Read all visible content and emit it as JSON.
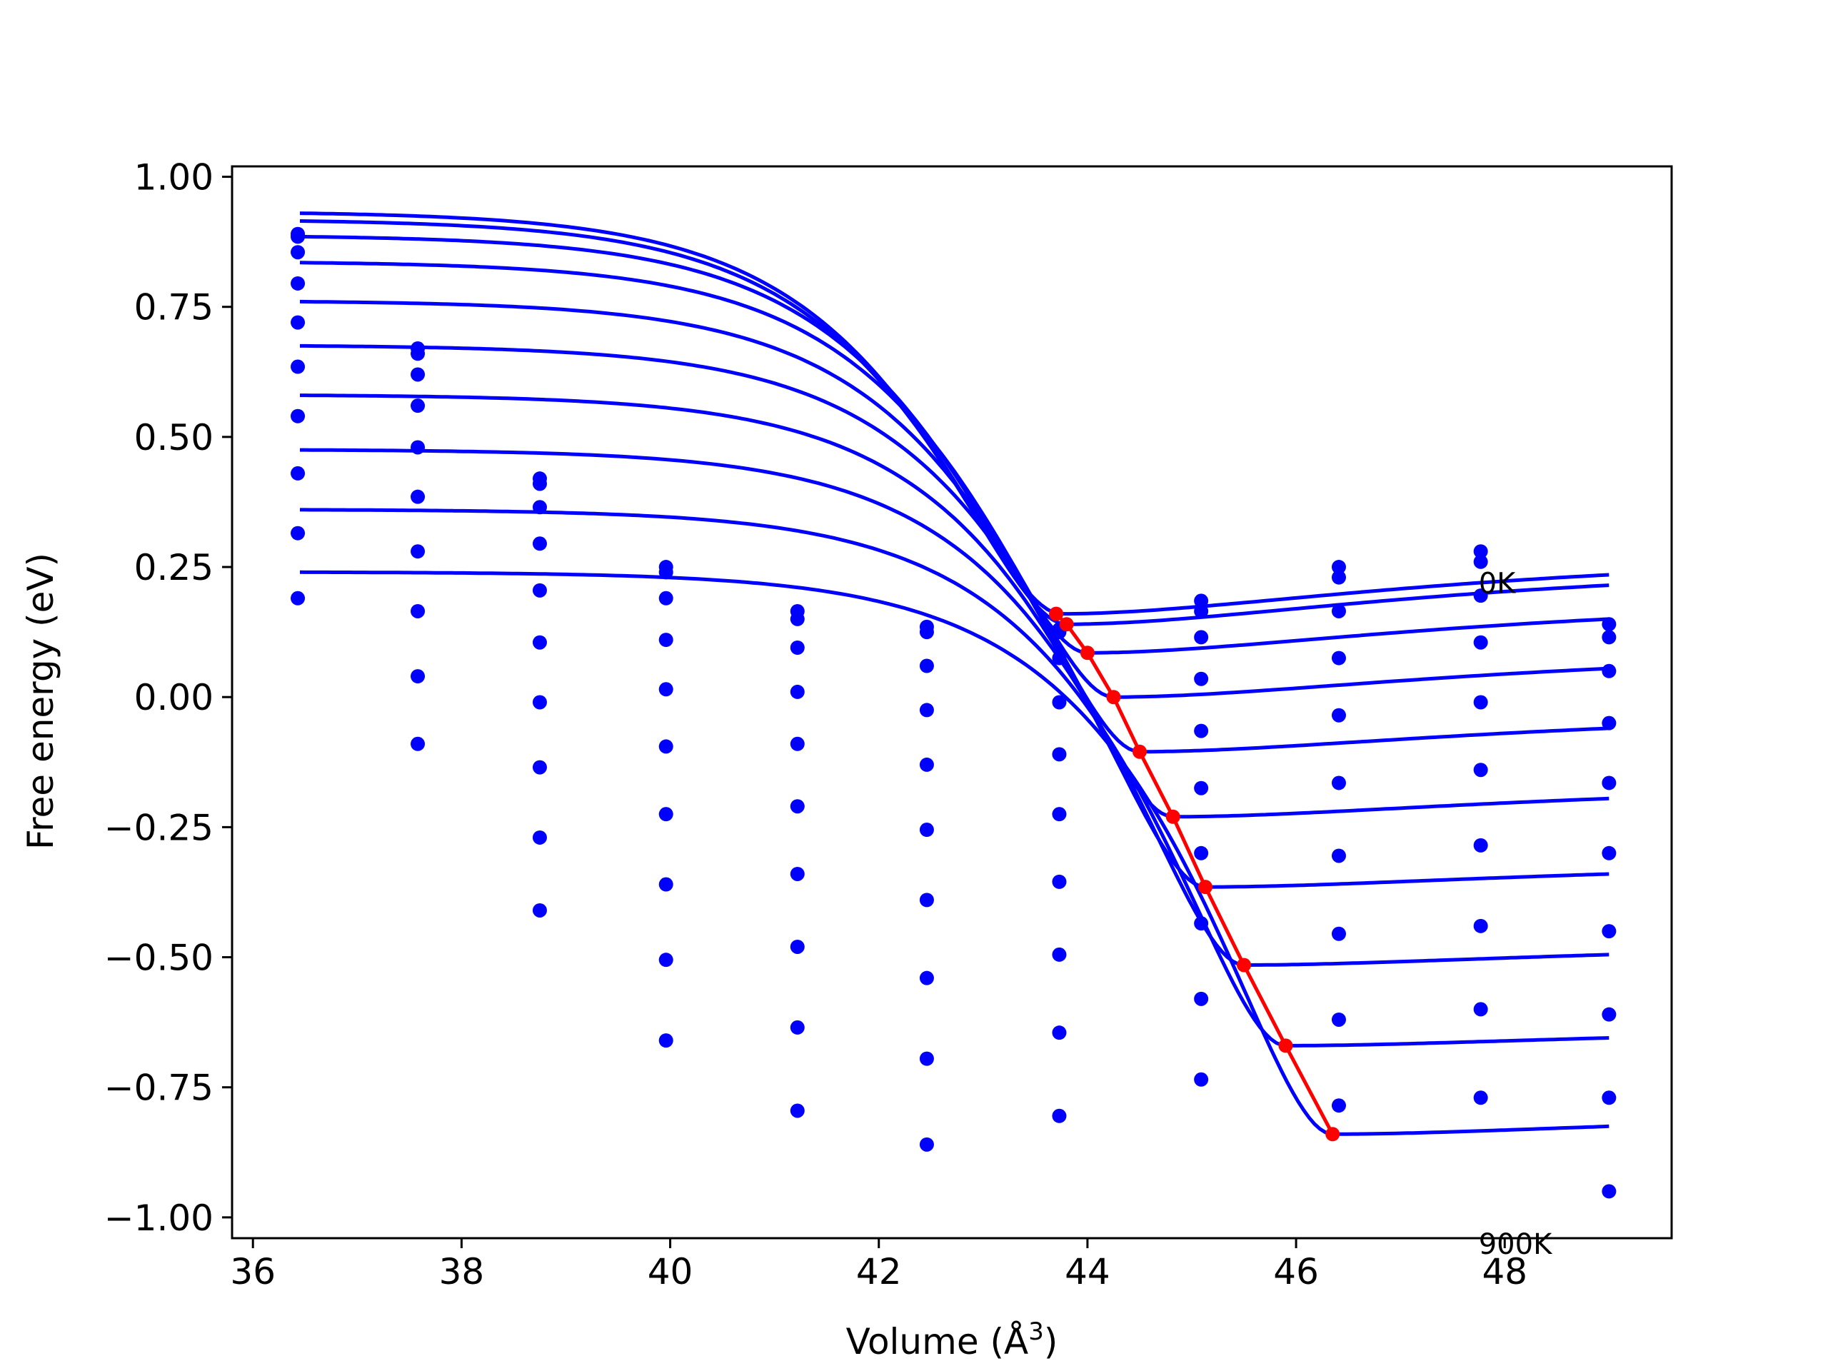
{
  "chart_data": {
    "type": "scatter",
    "title": "",
    "xlabel": "Volume (Å",
    "xlabel_sup": "3",
    "xlabel_close": ")",
    "ylabel": "Free energy (eV)",
    "xlim": [
      35.8,
      49.6
    ],
    "ylim": [
      -1.04,
      1.02
    ],
    "xticks": [
      36,
      38,
      40,
      42,
      44,
      46,
      48
    ],
    "xtick_labels": [
      "36",
      "38",
      "40",
      "42",
      "44",
      "46",
      "48"
    ],
    "yticks": [
      1.0,
      0.75,
      0.5,
      0.25,
      0.0,
      -0.25,
      -0.5,
      -0.75,
      -1.0
    ],
    "ytick_labels": [
      "1.00",
      "0.75",
      "0.50",
      "0.25",
      "0.00",
      "−0.25",
      "−0.50",
      "−0.75",
      "−1.00"
    ],
    "grid": false,
    "colors": {
      "points": "#0000ff",
      "fits": "#0000ff",
      "minima": "#ff0000"
    },
    "annotations": [
      {
        "text": "0K",
        "x": 47.75,
        "y": 0.2
      },
      {
        "text": "900K",
        "x": 47.75,
        "y": -1.07
      }
    ],
    "volumes": [
      36.43,
      37.58,
      38.75,
      39.96,
      41.22,
      42.46,
      43.73,
      45.09,
      46.41,
      47.77,
      49.0
    ],
    "series": [
      {
        "values": [
          0.89,
          0.67,
          0.42,
          0.25,
          0.165,
          0.135,
          0.13,
          0.185,
          0.25,
          0.28,
          0.14
        ]
      },
      {
        "values": [
          0.885,
          0.66,
          0.41,
          0.24,
          0.15,
          0.125,
          0.125,
          0.165,
          0.23,
          0.26,
          0.115
        ]
      },
      {
        "values": [
          0.855,
          0.62,
          0.365,
          0.19,
          0.095,
          0.06,
          0.075,
          0.115,
          0.165,
          0.195,
          0.05
        ]
      },
      {
        "values": [
          0.795,
          0.56,
          0.295,
          0.11,
          0.01,
          -0.025,
          -0.01,
          0.035,
          0.075,
          0.105,
          -0.05
        ]
      },
      {
        "values": [
          0.72,
          0.48,
          0.205,
          0.015,
          -0.09,
          -0.13,
          -0.11,
          -0.065,
          -0.035,
          -0.01,
          -0.165
        ]
      },
      {
        "values": [
          0.635,
          0.385,
          0.105,
          -0.095,
          -0.21,
          -0.255,
          -0.225,
          -0.175,
          -0.165,
          -0.14,
          -0.3
        ]
      },
      {
        "values": [
          0.54,
          0.28,
          -0.01,
          -0.225,
          -0.34,
          -0.39,
          -0.355,
          -0.3,
          -0.305,
          -0.285,
          -0.45
        ]
      },
      {
        "values": [
          0.43,
          0.165,
          -0.135,
          -0.36,
          -0.48,
          -0.54,
          -0.495,
          -0.435,
          -0.455,
          -0.44,
          -0.61
        ]
      },
      {
        "values": [
          0.315,
          0.04,
          -0.27,
          -0.505,
          -0.635,
          -0.695,
          -0.645,
          -0.58,
          -0.62,
          -0.6,
          -0.77
        ]
      },
      {
        "values": [
          0.19,
          -0.09,
          -0.41,
          -0.66,
          -0.795,
          -0.86,
          -0.805,
          -0.735,
          -0.785,
          -0.77,
          -0.95
        ]
      }
    ],
    "fit_curves": [
      {
        "v0": 43.75,
        "e0": 0.16,
        "right": 0.235
      },
      {
        "v0": 43.8,
        "e0": 0.14,
        "right": 0.215
      },
      {
        "v0": 44.0,
        "e0": 0.085,
        "right": 0.15
      },
      {
        "v0": 44.25,
        "e0": 0.0,
        "right": 0.055
      },
      {
        "v0": 44.5,
        "e0": -0.105,
        "right": -0.06
      },
      {
        "v0": 44.82,
        "e0": -0.23,
        "right": -0.195
      },
      {
        "v0": 45.13,
        "e0": -0.365,
        "right": -0.34
      },
      {
        "v0": 45.5,
        "e0": -0.515,
        "right": -0.495
      },
      {
        "v0": 45.9,
        "e0": -0.67,
        "right": -0.655
      },
      {
        "v0": 46.35,
        "e0": -0.84,
        "right": -0.825
      }
    ],
    "fit_left_values": [
      0.93,
      0.915,
      0.885,
      0.835,
      0.76,
      0.675,
      0.58,
      0.475,
      0.36,
      0.24
    ],
    "fit_x_range": [
      36.45,
      49.0
    ],
    "minima": {
      "x": [
        43.7,
        43.8,
        44.0,
        44.25,
        44.5,
        44.82,
        45.13,
        45.5,
        45.9,
        46.35
      ],
      "y": [
        0.16,
        0.14,
        0.085,
        0.0,
        -0.105,
        -0.23,
        -0.365,
        -0.515,
        -0.67,
        -0.84
      ]
    }
  }
}
